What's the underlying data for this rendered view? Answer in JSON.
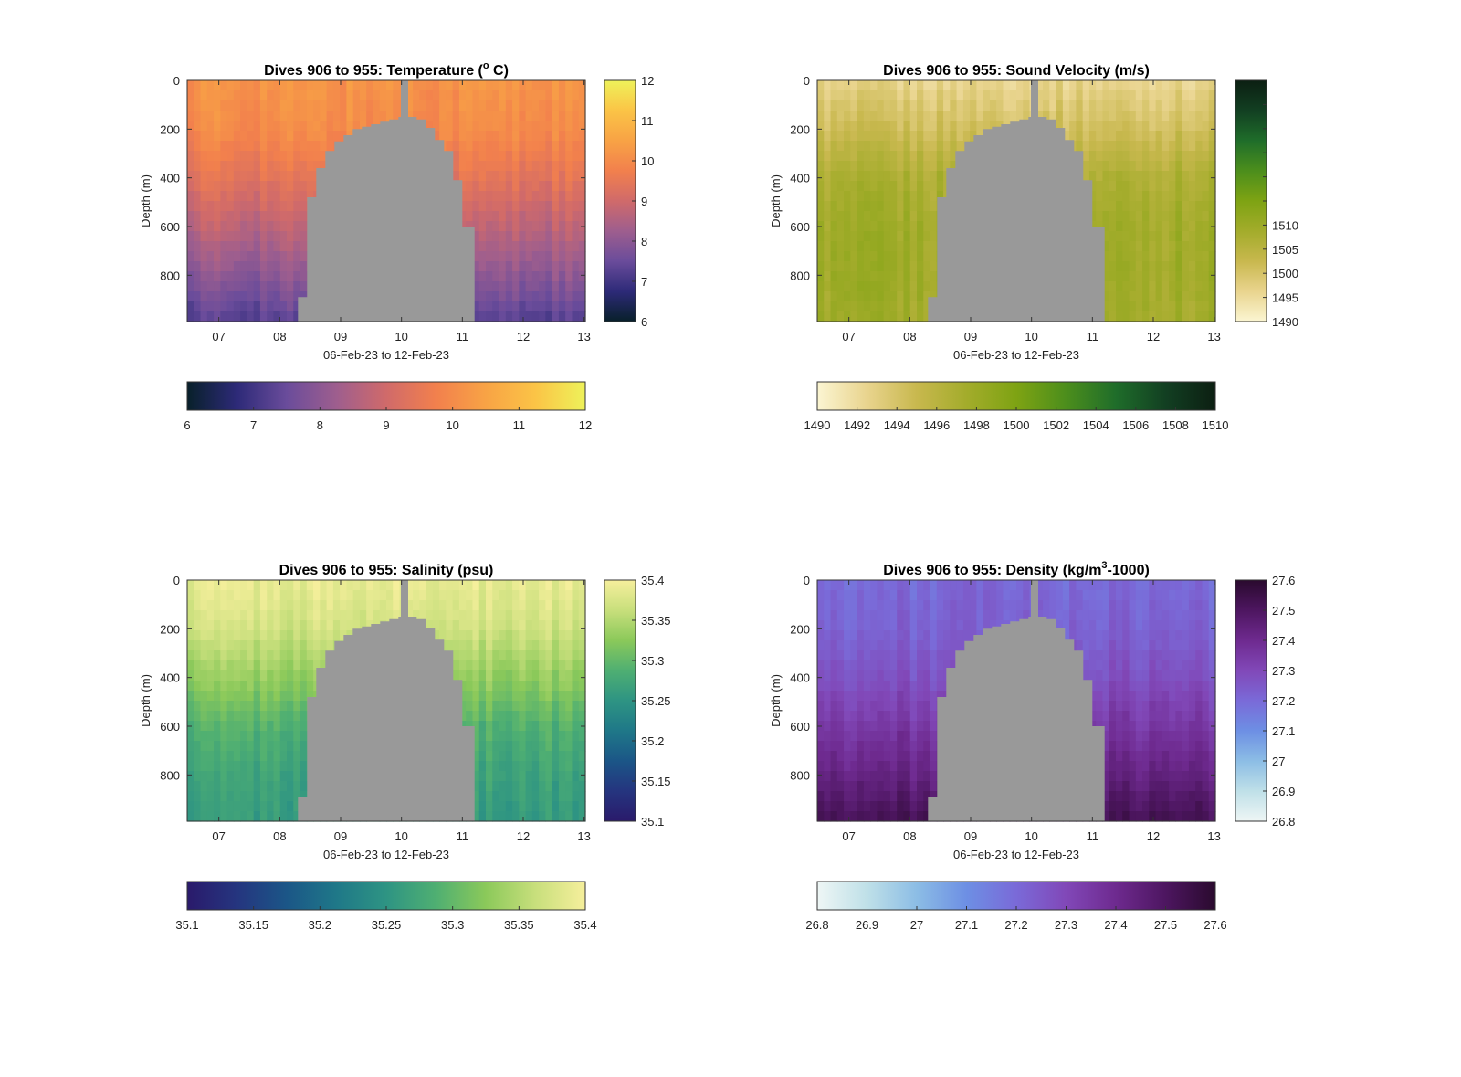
{
  "chart_data": [
    {
      "type": "heatmap",
      "title": "Dives 906 to 955: Temperature (° C)",
      "title_text": "Dives 906 to 955: Temperature (",
      "title_sup": "o",
      "title_tail": " C)",
      "xlabel": "06-Feb-23 to 12-Feb-23",
      "ylabel": "Depth (m)",
      "x_ticks": [
        "07",
        "08",
        "09",
        "10",
        "11",
        "12",
        "13"
      ],
      "x_tick_values": [
        7,
        8,
        9,
        10,
        11,
        12,
        13
      ],
      "xlim": [
        6.48,
        13.02
      ],
      "y_ticks": [
        "0",
        "200",
        "400",
        "600",
        "800"
      ],
      "y_tick_values": [
        0,
        200,
        400,
        600,
        800
      ],
      "ylim": [
        0,
        990
      ],
      "colormap": [
        "#08202a",
        "#2d2a78",
        "#6a4c9b",
        "#9e5e8e",
        "#d06a6a",
        "#f2804d",
        "#f8a345",
        "#fbc446",
        "#eef25a"
      ],
      "value_range": [
        6,
        12
      ],
      "colorbar_ticks": [
        "6",
        "7",
        "8",
        "9",
        "10",
        "11",
        "12"
      ],
      "colorbar_tick_values": [
        6,
        7,
        8,
        9,
        10,
        11,
        12
      ],
      "profile_at_depth": {
        "depth": [
          0,
          200,
          400,
          600,
          800,
          980
        ],
        "value": [
          10.2,
          10.0,
          9.4,
          8.7,
          8.0,
          7.3
        ]
      },
      "no_data_color": "#999999"
    },
    {
      "type": "heatmap",
      "title": "Dives 906 to 955: Sound Velocity (m/s)",
      "title_text": "Dives 906 to 955: Sound Velocity (m/s)",
      "title_sup": "",
      "title_tail": "",
      "xlabel": "06-Feb-23 to 12-Feb-23",
      "ylabel": "Depth (m)",
      "x_ticks": [
        "07",
        "08",
        "09",
        "10",
        "11",
        "12",
        "13"
      ],
      "x_tick_values": [
        7,
        8,
        9,
        10,
        11,
        12,
        13
      ],
      "xlim": [
        6.48,
        13.02
      ],
      "y_ticks": [
        "0",
        "200",
        "400",
        "600",
        "800"
      ],
      "y_tick_values": [
        0,
        200,
        400,
        600,
        800
      ],
      "ylim": [
        0,
        990
      ],
      "colormap": [
        "#fbf5d2",
        "#e9d48e",
        "#c8b84e",
        "#a3ac2b",
        "#7ea313",
        "#4c8e1c",
        "#1f6d2a",
        "#123f22",
        "#0c1f12"
      ],
      "value_range": [
        1490,
        1510
      ],
      "colorbar_ticks": [
        "1490",
        "1492",
        "1494",
        "1496",
        "1498",
        "1500",
        "1502",
        "1504",
        "1506",
        "1508",
        "1510"
      ],
      "colorbar_tick_values": [
        1490,
        1492,
        1494,
        1496,
        1498,
        1500,
        1502,
        1504,
        1506,
        1508,
        1510
      ],
      "colorbar_right_ticks": [
        "1490",
        "1495",
        "1500",
        "1505",
        "1510"
      ],
      "colorbar_right_tick_values": [
        1490,
        1495,
        1500,
        1505,
        1510
      ],
      "profile_at_depth": {
        "depth": [
          0,
          200,
          400,
          600,
          800,
          980
        ],
        "value": [
          1492.5,
          1494.5,
          1496.8,
          1497.6,
          1497.8,
          1497.5
        ]
      },
      "no_data_color": "#999999"
    },
    {
      "type": "heatmap",
      "title": "Dives 906 to 955: Salinity (psu)",
      "title_text": "Dives 906 to 955: Salinity (psu)",
      "title_sup": "",
      "title_tail": "",
      "xlabel": "06-Feb-23 to 12-Feb-23",
      "ylabel": "Depth (m)",
      "x_ticks": [
        "07",
        "08",
        "09",
        "10",
        "11",
        "12",
        "13"
      ],
      "x_tick_values": [
        7,
        8,
        9,
        10,
        11,
        12,
        13
      ],
      "xlim": [
        6.48,
        13.02
      ],
      "y_ticks": [
        "0",
        "200",
        "400",
        "600",
        "800"
      ],
      "y_tick_values": [
        0,
        200,
        400,
        600,
        800
      ],
      "ylim": [
        0,
        990
      ],
      "colormap": [
        "#2a1a6b",
        "#25357f",
        "#1b5687",
        "#1f7888",
        "#2e9483",
        "#4faf72",
        "#8bc95a",
        "#c8df7c",
        "#f6ef9c"
      ],
      "value_range": [
        35.1,
        35.4
      ],
      "colorbar_ticks": [
        "35.1",
        "35.15",
        "35.2",
        "35.25",
        "35.3",
        "35.35",
        "35.4"
      ],
      "colorbar_tick_values": [
        35.1,
        35.15,
        35.2,
        35.25,
        35.3,
        35.35,
        35.4
      ],
      "profile_at_depth": {
        "depth": [
          0,
          200,
          400,
          600,
          800,
          980
        ],
        "value": [
          35.39,
          35.37,
          35.33,
          35.29,
          35.27,
          35.26
        ]
      },
      "no_data_color": "#999999"
    },
    {
      "type": "heatmap",
      "title": "Dives 906 to 955: Density (kg/m³-1000)",
      "title_text": "Dives 906 to 955: Density (kg/m",
      "title_sup": "3",
      "title_tail": "-1000)",
      "xlabel": "06-Feb-23 to 12-Feb-23",
      "ylabel": "Depth (m)",
      "x_ticks": [
        "07",
        "08",
        "09",
        "10",
        "11",
        "12",
        "13"
      ],
      "x_tick_values": [
        7,
        8,
        9,
        10,
        11,
        12,
        13
      ],
      "xlim": [
        6.48,
        13.02
      ],
      "y_ticks": [
        "0",
        "200",
        "400",
        "600",
        "800"
      ],
      "y_tick_values": [
        0,
        200,
        400,
        600,
        800
      ],
      "ylim": [
        0,
        990
      ],
      "colormap": [
        "#eef6f5",
        "#bfe0e8",
        "#8cbde5",
        "#6d8fe4",
        "#7a6ad8",
        "#8148b8",
        "#6e2a8f",
        "#4d1660",
        "#2a0a2e"
      ],
      "value_range": [
        26.8,
        27.6
      ],
      "colorbar_ticks": [
        "26.8",
        "26.9",
        "27",
        "27.1",
        "27.2",
        "27.3",
        "27.4",
        "27.5",
        "27.6"
      ],
      "colorbar_tick_values": [
        26.8,
        26.9,
        27,
        27.1,
        27.2,
        27.3,
        27.4,
        27.5,
        27.6
      ],
      "profile_at_depth": {
        "depth": [
          0,
          200,
          400,
          600,
          800,
          980
        ],
        "value": [
          27.2,
          27.22,
          27.27,
          27.35,
          27.43,
          27.52
        ]
      },
      "no_data_color": "#999999"
    }
  ],
  "data_gap": {
    "description_days": [
      8.3,
      11.2
    ],
    "gap_top_depth": {
      "day": [
        8.3,
        8.45,
        8.6,
        8.75,
        8.9,
        9.05,
        9.2,
        9.35,
        9.5,
        9.65,
        9.8,
        9.95,
        10.1,
        10.25,
        10.4,
        10.55,
        10.7,
        10.85,
        11.0,
        11.2
      ],
      "depth": [
        890,
        480,
        360,
        290,
        250,
        225,
        200,
        190,
        180,
        170,
        160,
        150,
        150,
        160,
        195,
        245,
        290,
        410,
        600,
        880
      ]
    },
    "stem_day": 10.05
  }
}
